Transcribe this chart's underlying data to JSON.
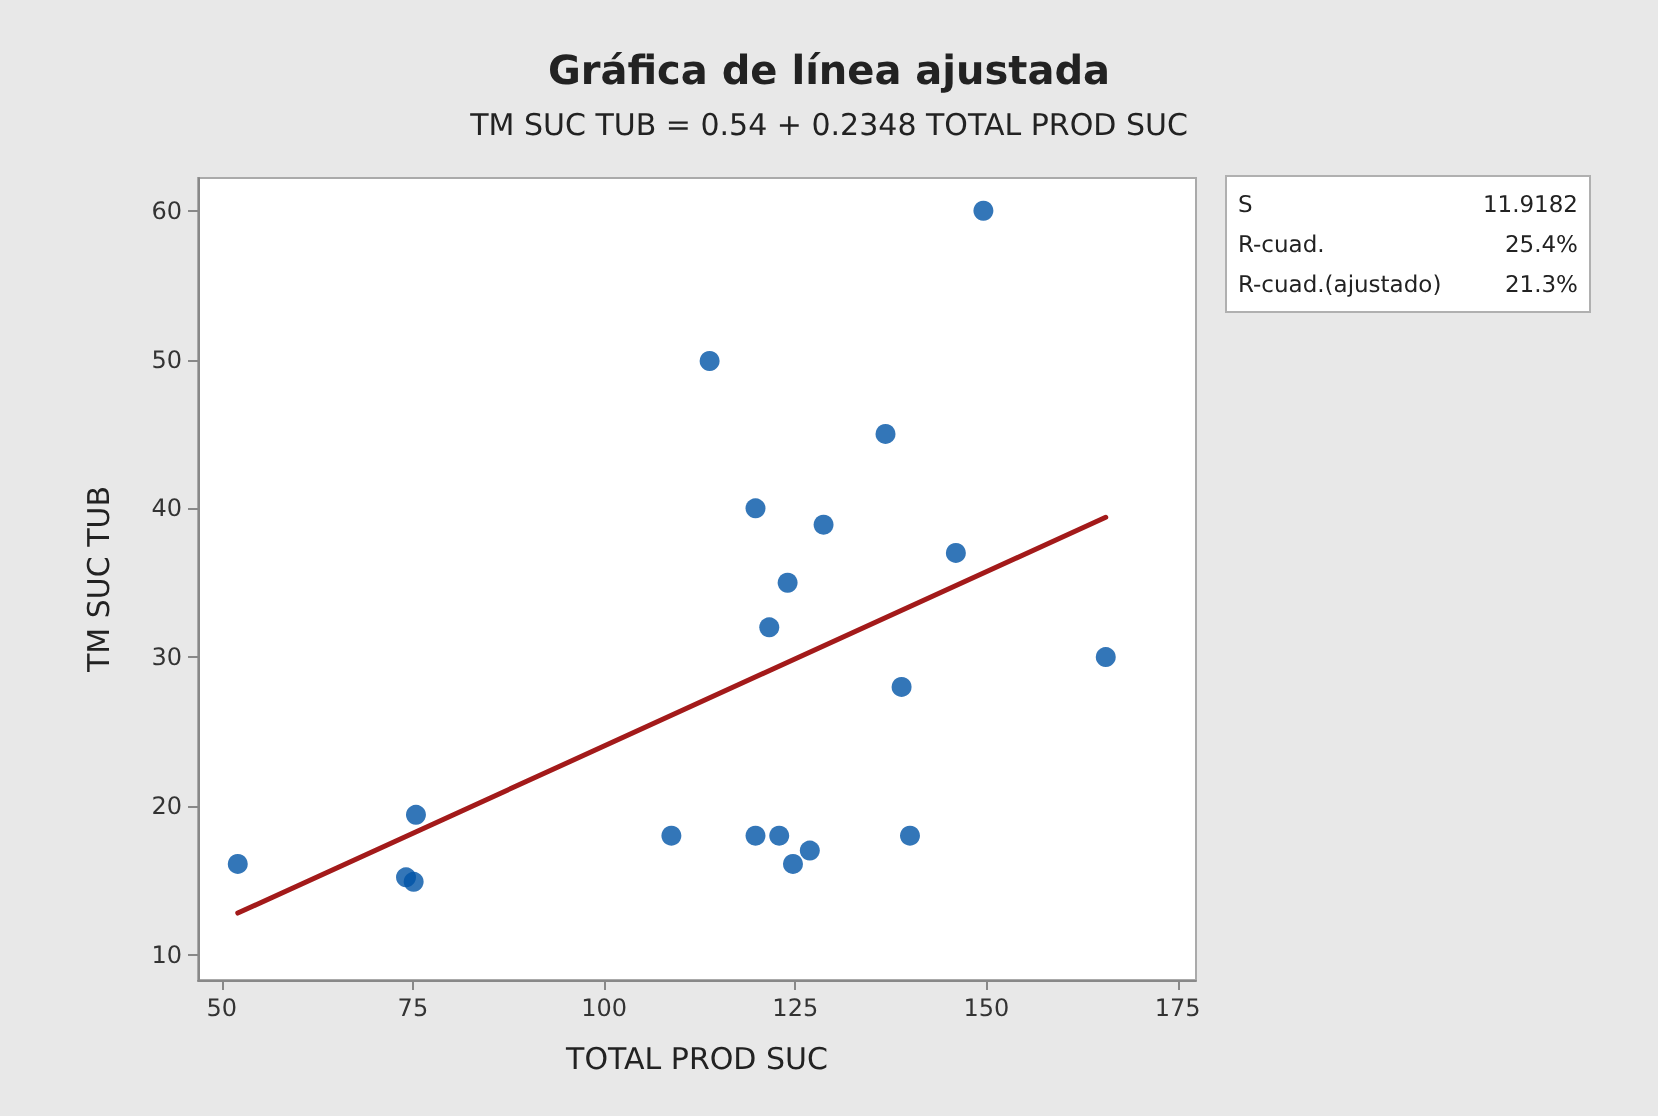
{
  "chart_data": {
    "type": "scatter",
    "title": "Gráfica de línea ajustada",
    "subtitle": "TM SUC TUB = 0.54 + 0.2348 TOTAL PROD SUC",
    "xlabel": "TOTAL PROD SUC",
    "ylabel": "TM SUC TUB",
    "annotations": [
      "S 11.9182",
      "R-cuad. 25.4%",
      "R-cuad.(ajustado) 21.3%"
    ],
    "xlim": [
      46.9,
      177.4
    ],
    "xticks": [
      50,
      75,
      100,
      125,
      150,
      175
    ],
    "ylim": [
      8.3,
      62.2
    ],
    "yticks": [
      10,
      20,
      30,
      40,
      50,
      60
    ],
    "grid": false,
    "marker": "circle",
    "series": [
      {
        "color": "#0054a6",
        "x": [
          52.1,
          74.1,
          75.1,
          75.4,
          108.8,
          113.8,
          119.8,
          119.8,
          121.6,
          122.9,
          124,
          124.7,
          126.9,
          128.7,
          136.8,
          138.9,
          140,
          146,
          149.6,
          165.6
        ],
        "values": [
          16.1,
          15.2,
          14.9,
          19.4,
          18,
          49.9,
          40,
          18,
          32,
          18,
          35,
          16.1,
          17,
          38.9,
          45,
          28,
          18,
          37,
          60,
          30
        ]
      },
      {
        "type": "line",
        "color": "#a31a1a",
        "marker": "none",
        "line_style": "solid",
        "x": [
          52.1,
          165.6
        ],
        "values": [
          12.8,
          39.4
        ]
      }
    ]
  }
}
